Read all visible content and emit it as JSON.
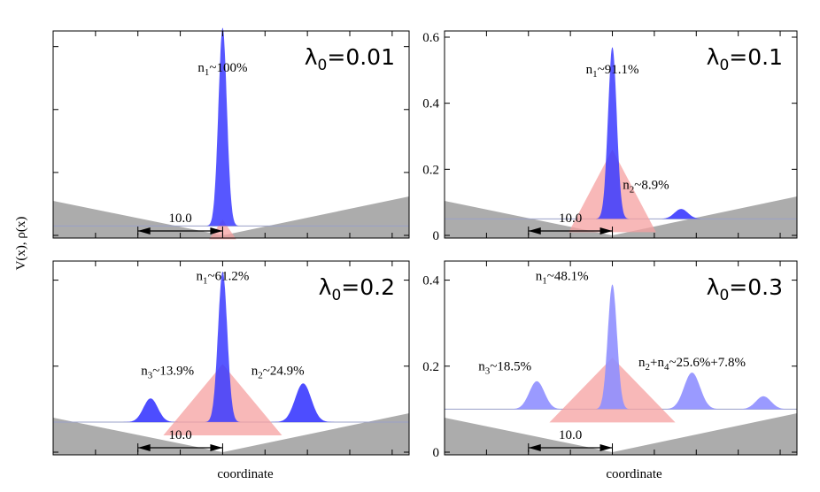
{
  "chart_data": {
    "type": "area",
    "ylabel": "V(x), ρ(x)",
    "xlabel": "coordinate",
    "panels": [
      {
        "lambda_label": "λ0=0.01",
        "lambda_sym": "λ",
        "lambda_sub": "0",
        "lambda_val": "=0.01",
        "yticks": [],
        "ylim": [
          0,
          0.63
        ],
        "baseline": 0.03,
        "annotations": [
          {
            "pre": "n",
            "sub": "1",
            "text": "~100%",
            "x": 0,
            "y": 0.52
          }
        ],
        "distance_label": "10.0",
        "potential_depth": 0.105,
        "triangle": {
          "half_width": 1.6,
          "height": 0.02
        },
        "peaks": [
          {
            "center": 0,
            "sigma": 0.5,
            "height": 0.63,
            "type": "tall"
          }
        ]
      },
      {
        "lambda_label": "λ0=0.1",
        "lambda_sym": "λ",
        "lambda_sub": "0",
        "lambda_val": "=0.1",
        "yticks": [
          {
            "v": 0,
            "t": "0"
          },
          {
            "v": 0.2,
            "t": "0.2"
          },
          {
            "v": 0.4,
            "t": "0.4"
          },
          {
            "v": 0.6,
            "t": "0.6"
          }
        ],
        "ylim": [
          0,
          0.6
        ],
        "baseline": 0.05,
        "annotations": [
          {
            "pre": "n",
            "sub": "1",
            "text": "~91.1%",
            "x": 0,
            "y": 0.49
          },
          {
            "pre": "n",
            "sub": "2",
            "text": "~8.9%",
            "x": 4.0,
            "y": 0.14
          }
        ],
        "distance_label": "10.0",
        "potential_depth": 0.115,
        "triangle": {
          "half_width": 5.2,
          "height": 0.21
        },
        "peaks": [
          {
            "center": 0,
            "sigma": 0.52,
            "height": 0.52,
            "type": "tall"
          },
          {
            "center": 8.2,
            "sigma": 0.8,
            "height": 0.03,
            "type": "side"
          }
        ]
      },
      {
        "lambda_label": "λ0=0.2",
        "lambda_sym": "λ",
        "lambda_sub": "0",
        "lambda_val": "=0.2",
        "yticks": [],
        "ylim": [
          0,
          0.43
        ],
        "baseline": 0.07,
        "annotations": [
          {
            "pre": "n",
            "sub": "1",
            "text": "~61.2%",
            "x": 0,
            "y": 0.4
          },
          {
            "pre": "n",
            "sub": "3",
            "text": "~13.9%",
            "x": -6.5,
            "y": 0.18
          },
          {
            "pre": "n",
            "sub": "2",
            "text": "~24.9%",
            "x": 6.5,
            "y": 0.18
          }
        ],
        "distance_label": "10.0",
        "potential_depth": 0.11,
        "triangle": {
          "half_width": 7.0,
          "height": 0.135
        },
        "peaks": [
          {
            "center": 0,
            "sigma": 0.55,
            "height": 0.35,
            "type": "tall"
          },
          {
            "center": -8.5,
            "sigma": 0.85,
            "height": 0.055,
            "type": "side"
          },
          {
            "center": 9.5,
            "sigma": 0.95,
            "height": 0.09,
            "type": "side"
          }
        ]
      },
      {
        "lambda_label": "λ0=0.3",
        "lambda_sym": "λ",
        "lambda_sub": "0",
        "lambda_val": "=0.3",
        "yticks": [
          {
            "v": 0,
            "t": "0"
          },
          {
            "v": 0.2,
            "t": "0.2"
          },
          {
            "v": 0.4,
            "t": "0.4"
          }
        ],
        "ylim": [
          0,
          0.43
        ],
        "baseline": 0.1,
        "annotations": [
          {
            "pre": "n",
            "sub": "1",
            "text": "~48.1%",
            "x": -6.0,
            "y": 0.4
          },
          {
            "pre": "n",
            "sub": "3",
            "text": "~18.5%",
            "x": -12.8,
            "y": 0.19
          },
          {
            "pre": "n",
            "sub": "2",
            "text": "+n",
            "sub2": "4",
            "text2": "~25.6%+7.8%",
            "x": 9.5,
            "y": 0.2
          }
        ],
        "distance_label": "10.0",
        "potential_depth": 0.12,
        "triangle": {
          "half_width": 7.5,
          "height": 0.12
        },
        "peaks": [
          {
            "center": 0,
            "sigma": 0.55,
            "height": 0.29,
            "type": "light"
          },
          {
            "center": -9.0,
            "sigma": 0.9,
            "height": 0.065,
            "type": "light"
          },
          {
            "center": 9.5,
            "sigma": 0.95,
            "height": 0.085,
            "type": "light"
          },
          {
            "center": 18.0,
            "sigma": 0.9,
            "height": 0.03,
            "type": "light"
          }
        ]
      }
    ]
  }
}
